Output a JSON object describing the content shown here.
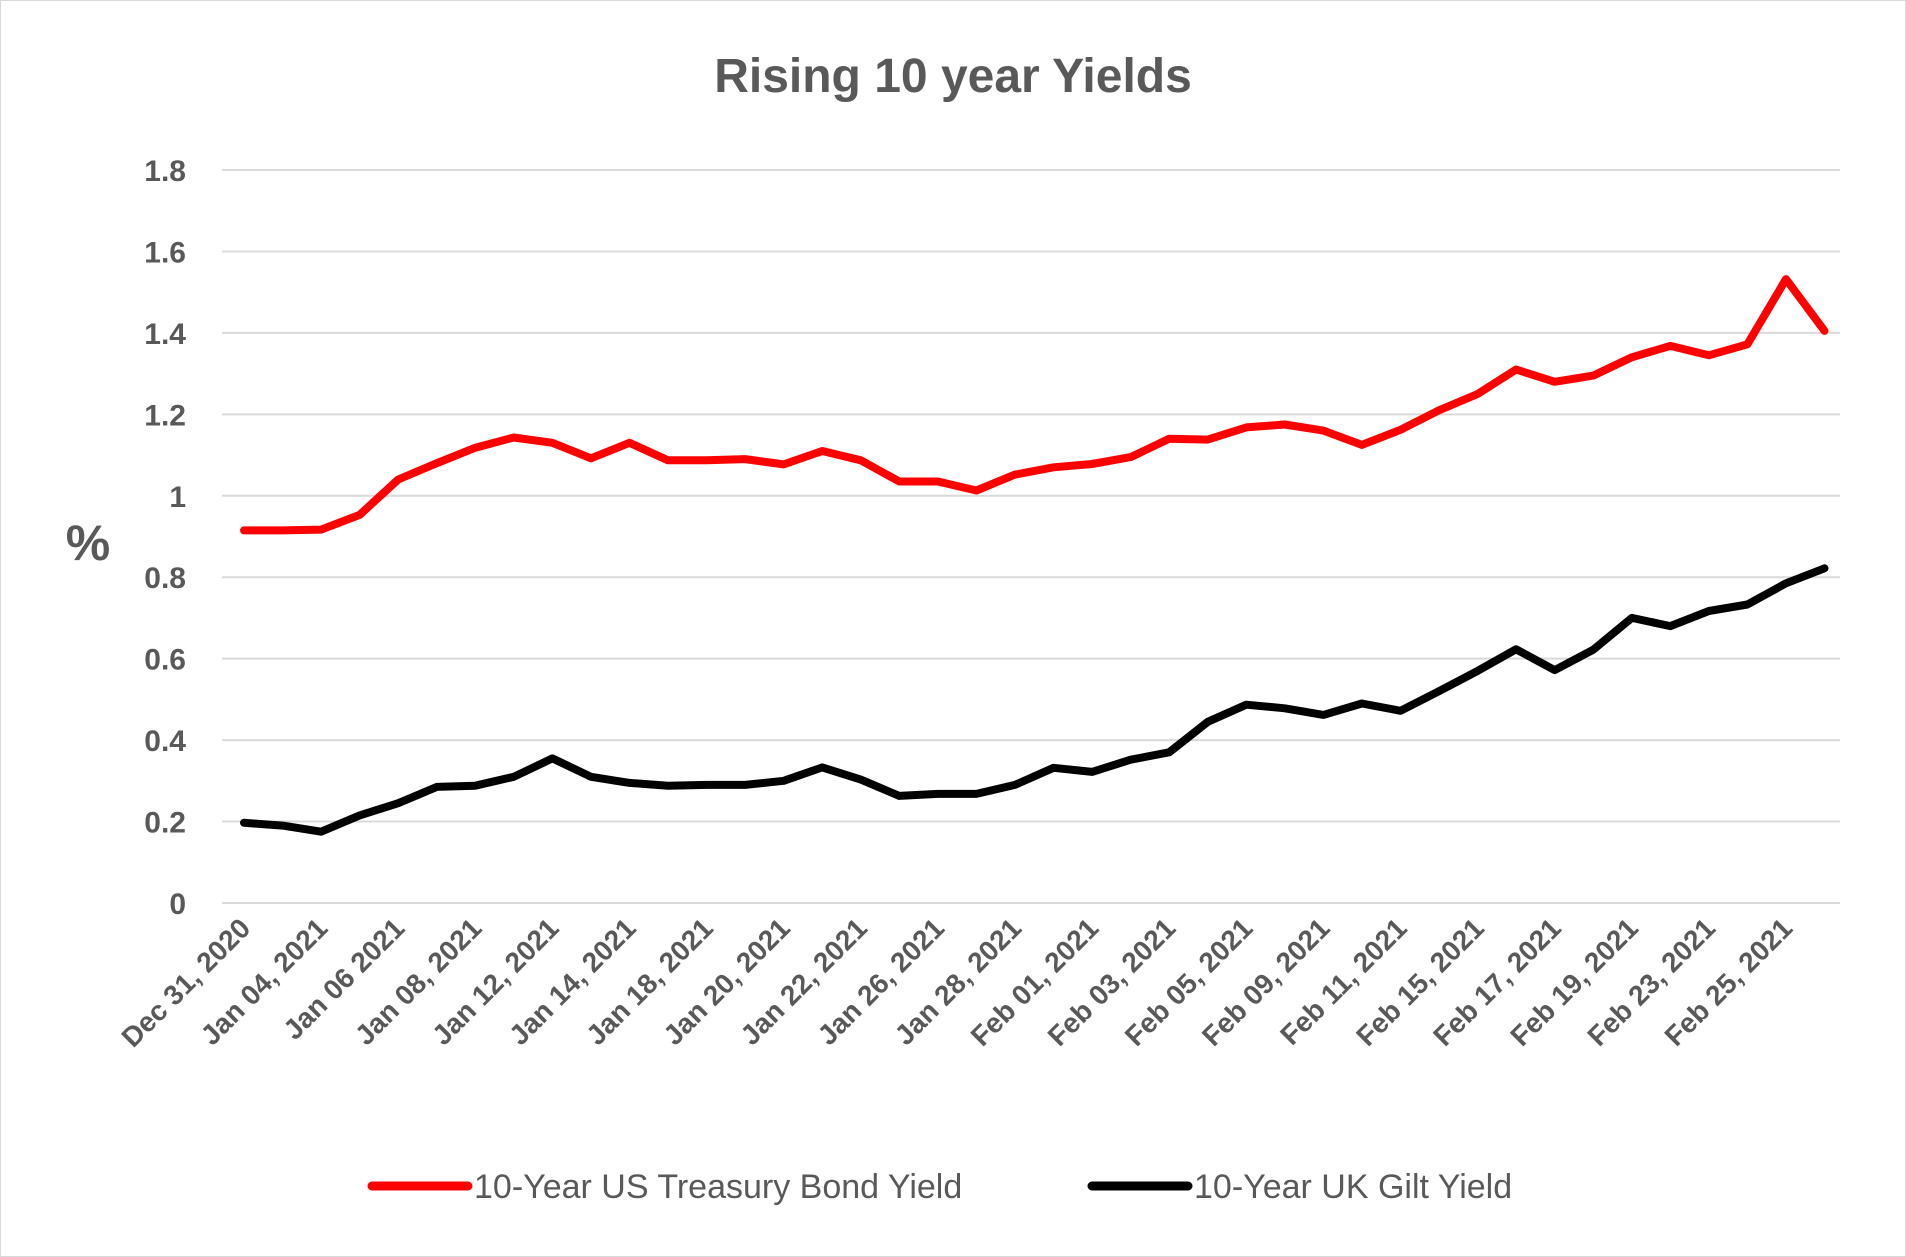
{
  "chart_data": {
    "type": "line",
    "title": "Rising 10 year Yields",
    "ylabel": "%",
    "xlabel": "",
    "ylim": [
      0,
      1.8
    ],
    "yticks": [
      "0",
      "0.2",
      "0.4",
      "0.6",
      "0.8",
      "1",
      "1.2",
      "1.4",
      "1.6",
      "1.8"
    ],
    "grid": true,
    "legend_position": "bottom",
    "x_tick_labels": [
      "Dec 31, 2020",
      "Jan 04, 2021",
      "Jan 06 2021",
      "Jan 08, 2021",
      "Jan 12, 2021",
      "Jan 14, 2021",
      "Jan 18, 2021",
      "Jan 20, 2021",
      "Jan 22, 2021",
      "Jan 26, 2021",
      "Jan 28, 2021",
      "Feb 01, 2021",
      "Feb 03, 2021",
      "Feb 05, 2021",
      "Feb 09, 2021",
      "Feb 11, 2021",
      "Feb 15, 2021",
      "Feb 17, 2021",
      "Feb 19, 2021",
      "Feb 23, 2021",
      "Feb 25, 2021"
    ],
    "series": [
      {
        "name": "10-Year US Treasury Bond Yield",
        "color": "#ff0000",
        "values": [
          0.915,
          0.915,
          0.917,
          0.953,
          1.04,
          1.08,
          1.118,
          1.143,
          1.13,
          1.092,
          1.13,
          1.087,
          1.087,
          1.09,
          1.077,
          1.11,
          1.087,
          1.035,
          1.035,
          1.013,
          1.052,
          1.07,
          1.078,
          1.095,
          1.14,
          1.138,
          1.168,
          1.175,
          1.16,
          1.125,
          1.162,
          1.21,
          1.25,
          1.31,
          1.28,
          1.295,
          1.34,
          1.368,
          1.345,
          1.372,
          1.532,
          1.405
        ]
      },
      {
        "name": "10-Year UK Gilt Yield",
        "color": "#000000",
        "values": [
          0.197,
          0.19,
          0.175,
          0.215,
          0.245,
          0.285,
          0.288,
          0.31,
          0.355,
          0.31,
          0.295,
          0.288,
          0.29,
          0.29,
          0.3,
          0.333,
          0.303,
          0.263,
          0.268,
          0.268,
          0.29,
          0.332,
          0.322,
          0.352,
          0.37,
          0.445,
          0.487,
          0.478,
          0.462,
          0.49,
          0.472,
          0.52,
          0.57,
          0.623,
          0.572,
          0.622,
          0.7,
          0.68,
          0.717,
          0.733,
          0.785,
          0.822
        ]
      }
    ]
  }
}
